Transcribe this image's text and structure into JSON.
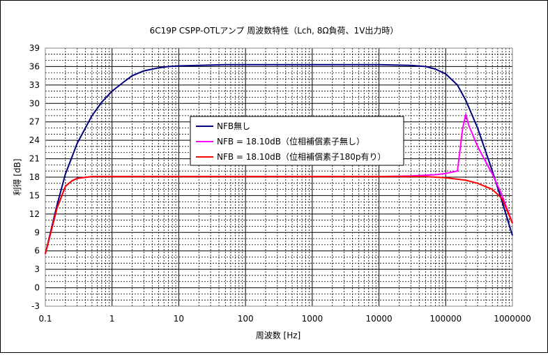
{
  "chart_data": {
    "type": "line",
    "title": "6C19P CSPP-OTLアンプ 周波数特性（Lch, 8Ω負荷、1V出力時）",
    "xlabel": "周波数 [Hz]",
    "ylabel": "利得 [dB]",
    "xscale": "log",
    "xlim": [
      0.1,
      1000000
    ],
    "ylim": [
      -3,
      39
    ],
    "x_ticks": [
      "0.1",
      "1",
      "10",
      "100",
      "1000",
      "10000",
      "100000",
      "1000000"
    ],
    "y_ticks": [
      "39",
      "36",
      "33",
      "30",
      "27",
      "24",
      "21",
      "18",
      "15",
      "12",
      "9",
      "6",
      "3",
      "0",
      "-3"
    ],
    "grid": true,
    "legend_position": "center",
    "series": [
      {
        "name": "NFB無し",
        "color": "#000080",
        "x": [
          0.1,
          0.15,
          0.2,
          0.3,
          0.5,
          0.7,
          1,
          1.5,
          2,
          3,
          5,
          7,
          10,
          20,
          50,
          100,
          300,
          1000,
          3000,
          10000,
          30000,
          50000,
          70000,
          100000,
          150000,
          200000,
          300000,
          500000,
          700000,
          1000000
        ],
        "values": [
          5.5,
          13.5,
          18.5,
          23.5,
          28,
          30.2,
          32,
          33.5,
          34.5,
          35.3,
          35.8,
          36,
          36.1,
          36.2,
          36.3,
          36.3,
          36.3,
          36.3,
          36.3,
          36.3,
          36.2,
          36,
          35.6,
          34.8,
          33,
          30.5,
          26,
          19,
          14,
          8.5
        ]
      },
      {
        "name": "NFB = 18.10dB（位相補償素子無し）",
        "color": "#ff00ff",
        "x": [
          0.1,
          0.15,
          0.2,
          0.25,
          0.3,
          0.5,
          1,
          10,
          100,
          1000,
          10000,
          30000,
          70000,
          100000,
          150000,
          180000,
          200000,
          220000,
          300000,
          500000,
          700000,
          1000000
        ],
        "values": [
          5.5,
          13,
          16.5,
          17.4,
          17.8,
          18.1,
          18.1,
          18.1,
          18.1,
          18.1,
          18.1,
          18.2,
          18.4,
          18.6,
          19,
          26,
          28.2,
          26.5,
          23,
          18.5,
          15,
          10.5
        ]
      },
      {
        "name": "NFB = 18.10dB（位相補償素子180p有り）",
        "color": "#ff0000",
        "x": [
          0.1,
          0.15,
          0.2,
          0.25,
          0.3,
          0.5,
          1,
          10,
          100,
          1000,
          10000,
          30000,
          50000,
          100000,
          200000,
          300000,
          500000,
          700000,
          1000000
        ],
        "values": [
          5.5,
          13,
          16.5,
          17.4,
          17.8,
          18.1,
          18.1,
          18.1,
          18.1,
          18.1,
          18.1,
          18.1,
          18.1,
          17.9,
          17.5,
          17,
          16,
          14.5,
          10.5
        ]
      }
    ]
  }
}
